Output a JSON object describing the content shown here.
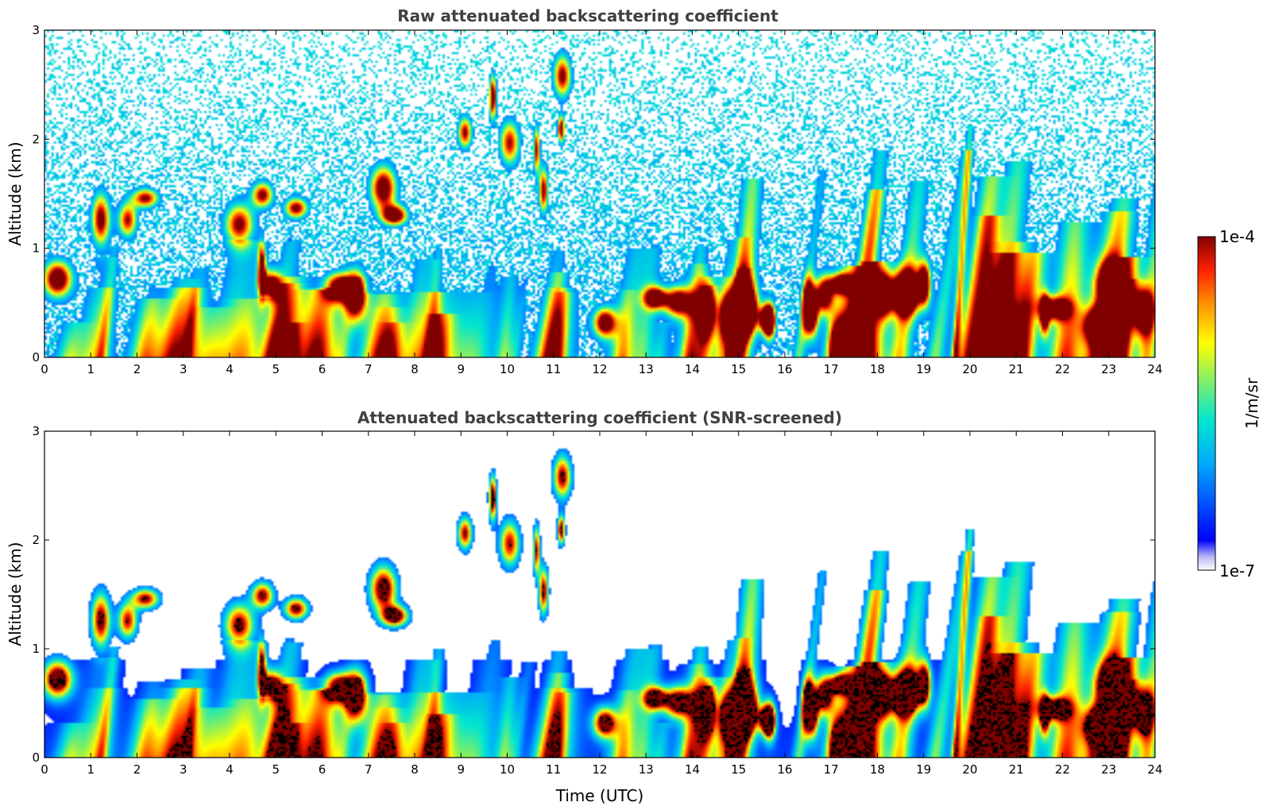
{
  "chart_data": [
    {
      "type": "heatmap",
      "title": "Raw attenuated backscattering coefficient",
      "xlabel": "",
      "ylabel": "Altitude (km)",
      "x_ticks": [
        "0",
        "1",
        "2",
        "3",
        "4",
        "5",
        "6",
        "7",
        "8",
        "9",
        "10",
        "11",
        "12",
        "13",
        "14",
        "15",
        "16",
        "17",
        "18",
        "19",
        "20",
        "21",
        "22",
        "23",
        "24"
      ],
      "y_ticks": [
        "0",
        "1",
        "2",
        "3"
      ],
      "xlim": [
        0,
        24
      ],
      "ylim": [
        0,
        3
      ],
      "screened": false
    },
    {
      "type": "heatmap",
      "title": "Attenuated backscattering coefficient (SNR-screened)",
      "xlabel": "Time (UTC)",
      "ylabel": "Altitude (km)",
      "x_ticks": [
        "0",
        "1",
        "2",
        "3",
        "4",
        "5",
        "6",
        "7",
        "8",
        "9",
        "10",
        "11",
        "12",
        "13",
        "14",
        "15",
        "16",
        "17",
        "18",
        "19",
        "20",
        "21",
        "22",
        "23",
        "24"
      ],
      "y_ticks": [
        "0",
        "1",
        "2",
        "3"
      ],
      "xlim": [
        0,
        24
      ],
      "ylim": [
        0,
        3
      ],
      "screened": true
    }
  ],
  "colorbar": {
    "label": "1/m/sr",
    "max_label": "1e-4",
    "min_label": "1e-7",
    "range": [
      1e-07,
      0.0001
    ],
    "scale": "log",
    "colormap": "jet"
  }
}
